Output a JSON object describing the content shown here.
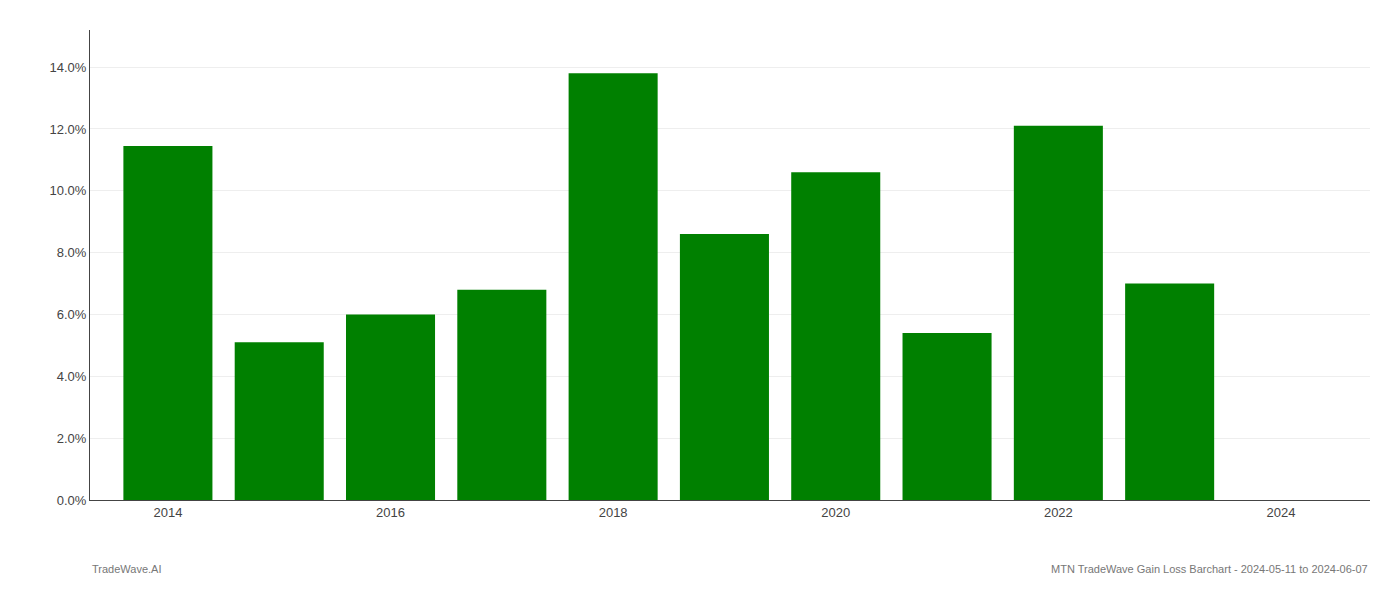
{
  "chart_data": {
    "type": "bar",
    "x": [
      2014,
      2015,
      2016,
      2017,
      2018,
      2019,
      2020,
      2021,
      2022,
      2023
    ],
    "values": [
      0.1145,
      0.051,
      0.06,
      0.068,
      0.138,
      0.086,
      0.106,
      0.054,
      0.121,
      0.07
    ],
    "color": "#008000",
    "xlim": [
      2013.3,
      2024.8
    ],
    "xticks": [
      2014,
      2016,
      2018,
      2020,
      2022,
      2024
    ],
    "ylim": [
      0,
      0.152
    ],
    "yticks": [
      {
        "value": 0.0,
        "label": "0.0%"
      },
      {
        "value": 0.02,
        "label": "2.0%"
      },
      {
        "value": 0.04,
        "label": "4.0%"
      },
      {
        "value": 0.06,
        "label": "6.0%"
      },
      {
        "value": 0.08,
        "label": "8.0%"
      },
      {
        "value": 0.1,
        "label": "10.0%"
      },
      {
        "value": 0.12,
        "label": "12.0%"
      },
      {
        "value": 0.14,
        "label": "14.0%"
      }
    ],
    "grid": true,
    "annotations": [
      "TradeWave.AI",
      "MTN TradeWave Gain Loss Barchart - 2024-05-11 to 2024-06-07"
    ]
  }
}
